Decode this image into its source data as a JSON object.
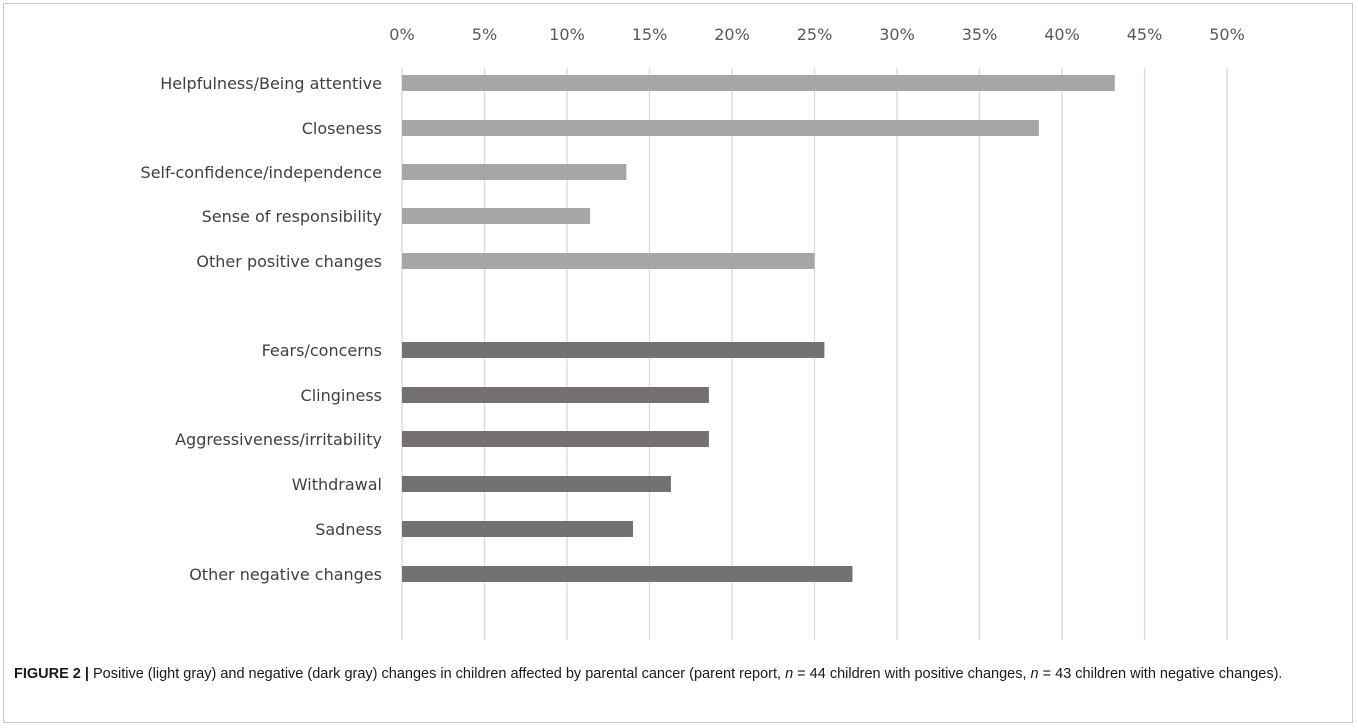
{
  "chart_data": {
    "type": "bar",
    "orientation": "horizontal",
    "xlim": [
      0,
      50
    ],
    "x_ticks": [
      "0%",
      "5%",
      "10%",
      "15%",
      "20%",
      "25%",
      "30%",
      "35%",
      "40%",
      "45%",
      "50%"
    ],
    "tick_axis_position": "top",
    "grid": true,
    "legend": "none",
    "groups": [
      {
        "color": "#a6a6a6",
        "categories": [
          "Helpfulness/Being attentive",
          "Closeness",
          "Self-confidence/independence",
          "Sense of responsibility",
          "Other positive changes"
        ],
        "values": [
          43.2,
          38.6,
          13.6,
          11.4,
          25.0
        ]
      },
      {
        "color": "#767171",
        "categories": [
          "Fears/concerns",
          "Clinginess",
          "Aggressiveness/irritability",
          "Withdrawal",
          "Sadness",
          "Other negative changes"
        ],
        "values": [
          25.6,
          18.6,
          18.6,
          16.3,
          14.0,
          27.3
        ]
      }
    ]
  },
  "caption": {
    "label": "FIGURE 2 |",
    "text_1": " Positive (light gray) and negative (dark gray) changes in children affected by parental cancer (parent report, ",
    "n_symbol_1": "n",
    "text_2": " = 44 children with positive changes, ",
    "n_symbol_2": "n",
    "text_3": " = 43 children with negative changes)."
  }
}
